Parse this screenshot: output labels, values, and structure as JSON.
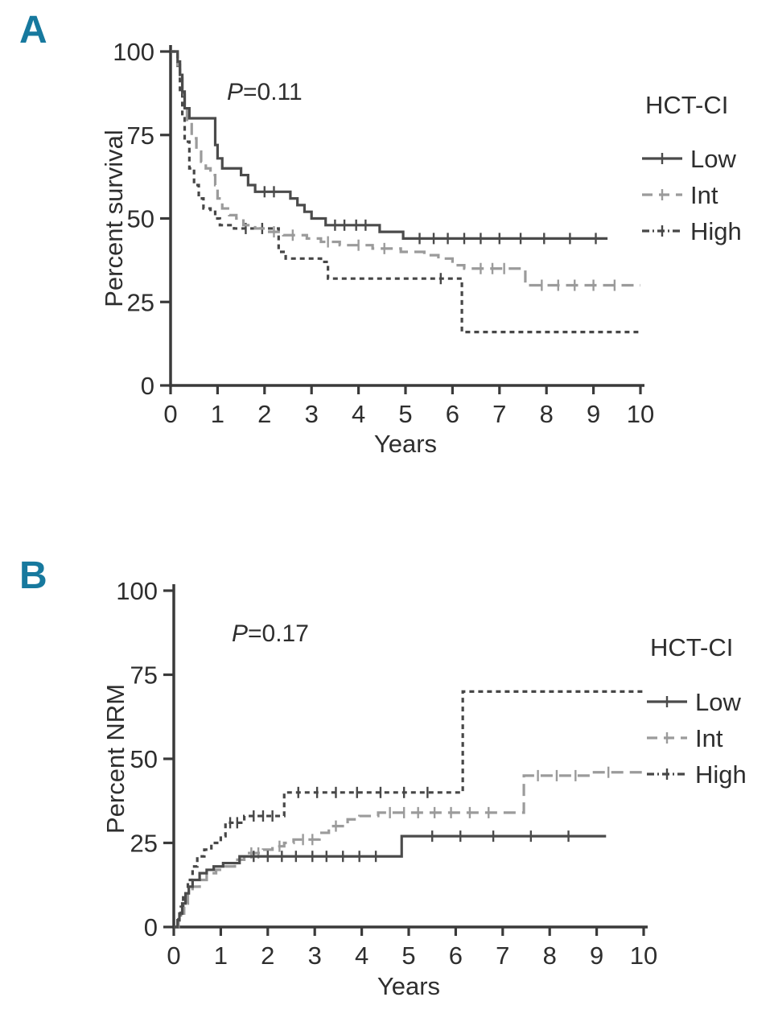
{
  "accent": {
    "panel_label_color": "#17799e",
    "axis_color": "#3a3a3a",
    "text_color": "#2e2e2e",
    "background": "#ffffff"
  },
  "chart_data": [
    {
      "type": "line",
      "subtype": "kaplan-meier-step",
      "panel_label": "A",
      "p_label": {
        "prefix": "P",
        "rest": "=0.11"
      },
      "xlabel": "Years",
      "ylabel": "Percent survival",
      "xlim": [
        0,
        10
      ],
      "ylim": [
        0,
        100
      ],
      "xticks": [
        0,
        1,
        2,
        3,
        4,
        5,
        6,
        7,
        8,
        9,
        10
      ],
      "yticks": [
        0,
        25,
        50,
        75,
        100
      ],
      "legend": {
        "title": "HCT-CI",
        "entries": [
          "Low",
          "Int",
          "High"
        ],
        "position": "right"
      },
      "series": [
        {
          "name": "Low",
          "line_style": "solid",
          "color": "#4b4b4b",
          "points": [
            [
              0,
              100
            ],
            [
              0.15,
              97
            ],
            [
              0.2,
              93
            ],
            [
              0.25,
              88
            ],
            [
              0.3,
              83
            ],
            [
              0.4,
              80
            ],
            [
              0.95,
              72
            ],
            [
              1.0,
              68
            ],
            [
              1.1,
              65
            ],
            [
              1.5,
              63
            ],
            [
              1.65,
              60
            ],
            [
              1.8,
              58
            ],
            [
              2.55,
              56
            ],
            [
              2.7,
              54
            ],
            [
              2.85,
              52
            ],
            [
              3.0,
              50
            ],
            [
              3.3,
              48
            ],
            [
              4.45,
              46
            ],
            [
              4.95,
              44
            ],
            [
              9.3,
              44
            ]
          ],
          "censor_marks": [
            [
              2.0,
              58
            ],
            [
              2.2,
              58
            ],
            [
              3.5,
              48
            ],
            [
              3.7,
              48
            ],
            [
              3.95,
              48
            ],
            [
              4.15,
              48
            ],
            [
              5.3,
              44
            ],
            [
              5.6,
              44
            ],
            [
              5.9,
              44
            ],
            [
              6.25,
              44
            ],
            [
              6.6,
              44
            ],
            [
              7.0,
              44
            ],
            [
              7.45,
              44
            ],
            [
              7.95,
              44
            ],
            [
              8.5,
              44
            ],
            [
              9.05,
              44
            ]
          ]
        },
        {
          "name": "Int",
          "line_style": "dashed",
          "color": "#9b9b9b",
          "points": [
            [
              0,
              100
            ],
            [
              0.15,
              96
            ],
            [
              0.2,
              92
            ],
            [
              0.25,
              87
            ],
            [
              0.3,
              83
            ],
            [
              0.35,
              79
            ],
            [
              0.45,
              74
            ],
            [
              0.55,
              70
            ],
            [
              0.65,
              67
            ],
            [
              0.75,
              65
            ],
            [
              0.85,
              63
            ],
            [
              0.95,
              60
            ],
            [
              1.0,
              56
            ],
            [
              1.1,
              53
            ],
            [
              1.25,
              51
            ],
            [
              1.4,
              50
            ],
            [
              1.55,
              48
            ],
            [
              1.8,
              47
            ],
            [
              2.1,
              46
            ],
            [
              2.4,
              45
            ],
            [
              2.9,
              44
            ],
            [
              3.2,
              43
            ],
            [
              3.6,
              42
            ],
            [
              4.3,
              41
            ],
            [
              4.9,
              40
            ],
            [
              5.4,
              39
            ],
            [
              5.7,
              38
            ],
            [
              6.0,
              36
            ],
            [
              6.25,
              35
            ],
            [
              7.55,
              30
            ],
            [
              10,
              30
            ]
          ],
          "censor_marks": [
            [
              2.2,
              46
            ],
            [
              2.6,
              45
            ],
            [
              3.35,
              43
            ],
            [
              4.0,
              42
            ],
            [
              4.55,
              41
            ],
            [
              6.6,
              35
            ],
            [
              6.85,
              35
            ],
            [
              7.1,
              35
            ],
            [
              7.9,
              30
            ],
            [
              8.25,
              30
            ],
            [
              8.6,
              30
            ],
            [
              9.0,
              30
            ],
            [
              9.45,
              30
            ]
          ]
        },
        {
          "name": "High",
          "line_style": "dotted",
          "color": "#474747",
          "points": [
            [
              0,
              100
            ],
            [
              0.15,
              95
            ],
            [
              0.2,
              88
            ],
            [
              0.25,
              80
            ],
            [
              0.3,
              73
            ],
            [
              0.4,
              65
            ],
            [
              0.5,
              60
            ],
            [
              0.6,
              56
            ],
            [
              0.7,
              53
            ],
            [
              0.85,
              52
            ],
            [
              0.95,
              50
            ],
            [
              1.05,
              48
            ],
            [
              1.35,
              47
            ],
            [
              2.3,
              40
            ],
            [
              2.45,
              38
            ],
            [
              3.2,
              37
            ],
            [
              3.35,
              32
            ],
            [
              6.2,
              16
            ],
            [
              10,
              16
            ]
          ],
          "censor_marks": [
            [
              1.6,
              47
            ],
            [
              1.95,
              47
            ],
            [
              5.75,
              32
            ]
          ]
        }
      ]
    },
    {
      "type": "line",
      "subtype": "cumulative-incidence-step",
      "panel_label": "B",
      "p_label": {
        "prefix": "P",
        "rest": "=0.17"
      },
      "xlabel": "Years",
      "ylabel": "Percent NRM",
      "xlim": [
        0,
        10
      ],
      "ylim": [
        0,
        100
      ],
      "xticks": [
        0,
        1,
        2,
        3,
        4,
        5,
        6,
        7,
        8,
        9,
        10
      ],
      "yticks": [
        0,
        25,
        50,
        75,
        100
      ],
      "legend": {
        "title": "HCT-CI",
        "entries": [
          "Low",
          "Int",
          "High"
        ],
        "position": "right"
      },
      "series": [
        {
          "name": "Low",
          "line_style": "solid",
          "color": "#4b4b4b",
          "points": [
            [
              0,
              0
            ],
            [
              0.08,
              2
            ],
            [
              0.12,
              4
            ],
            [
              0.18,
              7
            ],
            [
              0.25,
              10
            ],
            [
              0.32,
              12
            ],
            [
              0.4,
              14
            ],
            [
              0.55,
              16
            ],
            [
              0.7,
              17
            ],
            [
              0.85,
              18
            ],
            [
              1.05,
              19
            ],
            [
              1.4,
              21
            ],
            [
              4.85,
              27
            ],
            [
              9.2,
              27
            ]
          ],
          "censor_marks": [
            [
              1.7,
              21
            ],
            [
              2.0,
              21
            ],
            [
              2.3,
              21
            ],
            [
              2.6,
              21
            ],
            [
              2.95,
              21
            ],
            [
              3.25,
              21
            ],
            [
              3.6,
              21
            ],
            [
              3.95,
              21
            ],
            [
              4.3,
              21
            ],
            [
              5.5,
              27
            ],
            [
              6.1,
              27
            ],
            [
              6.8,
              27
            ],
            [
              7.6,
              27
            ],
            [
              8.4,
              27
            ]
          ]
        },
        {
          "name": "Int",
          "line_style": "dashed",
          "color": "#9b9b9b",
          "points": [
            [
              0,
              0
            ],
            [
              0.1,
              2
            ],
            [
              0.15,
              4
            ],
            [
              0.22,
              7
            ],
            [
              0.3,
              10
            ],
            [
              0.4,
              12
            ],
            [
              0.55,
              14
            ],
            [
              0.7,
              16
            ],
            [
              0.9,
              17
            ],
            [
              1.1,
              18
            ],
            [
              1.3,
              20
            ],
            [
              1.5,
              22
            ],
            [
              1.9,
              23
            ],
            [
              2.1,
              24
            ],
            [
              2.35,
              25
            ],
            [
              2.55,
              26
            ],
            [
              3.1,
              28
            ],
            [
              3.3,
              30
            ],
            [
              3.7,
              32
            ],
            [
              3.95,
              33
            ],
            [
              4.35,
              34
            ],
            [
              7.45,
              45
            ],
            [
              8.9,
              46
            ],
            [
              10,
              46
            ]
          ],
          "censor_marks": [
            [
              1.65,
              22
            ],
            [
              1.8,
              22
            ],
            [
              2.25,
              24
            ],
            [
              2.75,
              26
            ],
            [
              2.95,
              26
            ],
            [
              3.45,
              30
            ],
            [
              4.6,
              34
            ],
            [
              4.9,
              34
            ],
            [
              5.2,
              34
            ],
            [
              5.55,
              34
            ],
            [
              5.9,
              34
            ],
            [
              6.3,
              34
            ],
            [
              6.7,
              34
            ],
            [
              7.75,
              45
            ],
            [
              8.15,
              45
            ],
            [
              8.55,
              45
            ],
            [
              9.25,
              46
            ]
          ]
        },
        {
          "name": "High",
          "line_style": "dotted",
          "color": "#474747",
          "points": [
            [
              0,
              0
            ],
            [
              0.1,
              3
            ],
            [
              0.15,
              6
            ],
            [
              0.2,
              10
            ],
            [
              0.3,
              14
            ],
            [
              0.4,
              18
            ],
            [
              0.5,
              21
            ],
            [
              0.65,
              23
            ],
            [
              0.8,
              25
            ],
            [
              1.0,
              27
            ],
            [
              1.1,
              31
            ],
            [
              1.5,
              33
            ],
            [
              2.35,
              40
            ],
            [
              6.15,
              70
            ],
            [
              10,
              70
            ]
          ],
          "censor_marks": [
            [
              1.2,
              31
            ],
            [
              1.35,
              31
            ],
            [
              1.7,
              33
            ],
            [
              1.9,
              33
            ],
            [
              2.1,
              33
            ],
            [
              2.65,
              40
            ],
            [
              3.05,
              40
            ],
            [
              3.45,
              40
            ],
            [
              3.9,
              40
            ],
            [
              4.4,
              40
            ],
            [
              4.9,
              40
            ],
            [
              5.4,
              40
            ]
          ]
        }
      ]
    }
  ]
}
